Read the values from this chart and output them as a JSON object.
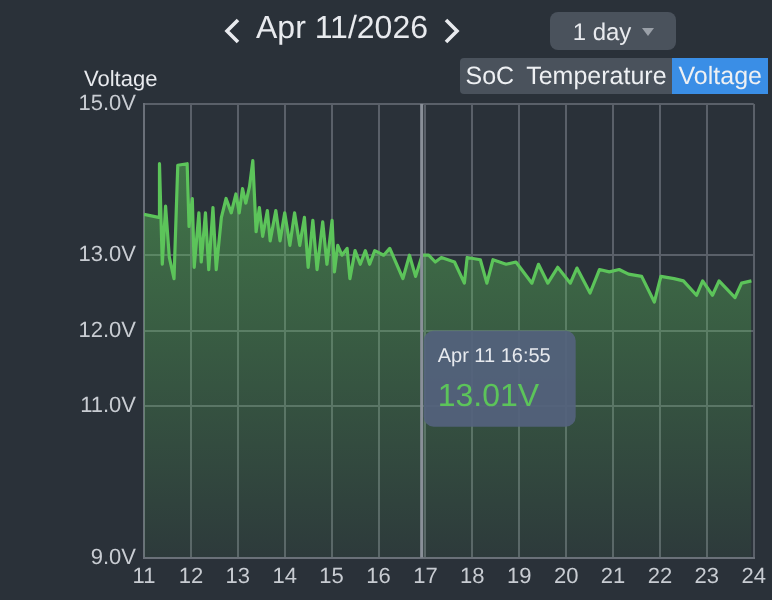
{
  "chart_data": {
    "type": "area",
    "title": "Apr 11/2026",
    "ylabel": "Voltage",
    "x": [
      11.0,
      11.31,
      11.33,
      11.39,
      11.46,
      11.54,
      11.64,
      11.72,
      11.92,
      11.96,
      12.03,
      12.07,
      12.17,
      12.22,
      12.31,
      12.38,
      12.47,
      12.54,
      12.65,
      12.75,
      12.86,
      12.96,
      13.03,
      13.1,
      13.17,
      13.25,
      13.32,
      13.39,
      13.46,
      13.53,
      13.63,
      13.69,
      13.81,
      13.9,
      14.0,
      14.11,
      14.21,
      14.32,
      14.42,
      14.5,
      14.6,
      14.69,
      14.81,
      14.9,
      15.01,
      15.06,
      15.13,
      15.22,
      15.33,
      15.39,
      15.5,
      15.61,
      15.72,
      15.81,
      15.92,
      16.11,
      16.24,
      16.52,
      16.66,
      16.79,
      16.93,
      17.07,
      17.21,
      17.34,
      17.62,
      17.83,
      17.89,
      18.17,
      18.31,
      18.44,
      18.72,
      18.93,
      19.27,
      19.41,
      19.61,
      19.82,
      20.09,
      20.23,
      20.51,
      20.71,
      20.92,
      21.13,
      21.33,
      21.61,
      21.88,
      22.02,
      22.3,
      22.5,
      22.78,
      22.91,
      23.12,
      23.26,
      23.6,
      23.74,
      23.95
    ],
    "series": [
      {
        "color": "#5cc45a",
        "values": [
          13.54,
          13.5,
          14.21,
          12.88,
          13.65,
          12.97,
          12.69,
          14.19,
          14.21,
          13.38,
          13.75,
          12.84,
          13.56,
          12.91,
          13.56,
          12.81,
          13.63,
          12.81,
          13.5,
          13.75,
          13.56,
          13.81,
          13.56,
          13.88,
          13.69,
          13.91,
          14.25,
          13.31,
          13.63,
          13.25,
          13.59,
          13.19,
          13.59,
          13.19,
          13.56,
          13.13,
          13.56,
          13.13,
          13.5,
          12.84,
          13.46,
          12.81,
          13.44,
          12.88,
          13.46,
          12.78,
          13.13,
          13.0,
          13.09,
          12.69,
          13.06,
          12.88,
          13.06,
          12.88,
          13.06,
          13.0,
          13.09,
          12.69,
          13.0,
          12.72,
          13.0,
          13.0,
          12.91,
          12.97,
          12.91,
          12.63,
          12.97,
          12.94,
          12.63,
          12.94,
          12.88,
          12.91,
          12.63,
          12.88,
          12.63,
          12.84,
          12.63,
          12.83,
          12.5,
          12.81,
          12.78,
          12.81,
          12.75,
          12.72,
          12.38,
          12.72,
          12.69,
          12.66,
          12.47,
          12.66,
          12.47,
          12.66,
          12.44,
          12.63,
          12.66
        ]
      }
    ],
    "xlim": [
      11,
      24
    ],
    "xticks": [
      11,
      12,
      13,
      14,
      15,
      16,
      17,
      18,
      19,
      20,
      21,
      22,
      23,
      24
    ],
    "ylim": [
      9,
      15
    ],
    "yticks": [
      {
        "value": 9,
        "label": "9.0V"
      },
      {
        "value": 11,
        "label": "11.0V"
      },
      {
        "value": 12,
        "label": "12.0V"
      },
      {
        "value": 13,
        "label": "13.0V"
      },
      {
        "value": 15,
        "label": "15.0V"
      }
    ],
    "grid": true,
    "legend": false,
    "marker": "none",
    "line_style": "solid",
    "ref_lines": [
      {
        "axis": "x",
        "value": 16.92,
        "color": "#8a9099"
      }
    ],
    "annotations": [
      "Apr 11 16:55",
      "13.01V",
      "1 day",
      "SoC",
      "Temperature",
      "Voltage"
    ]
  }
}
